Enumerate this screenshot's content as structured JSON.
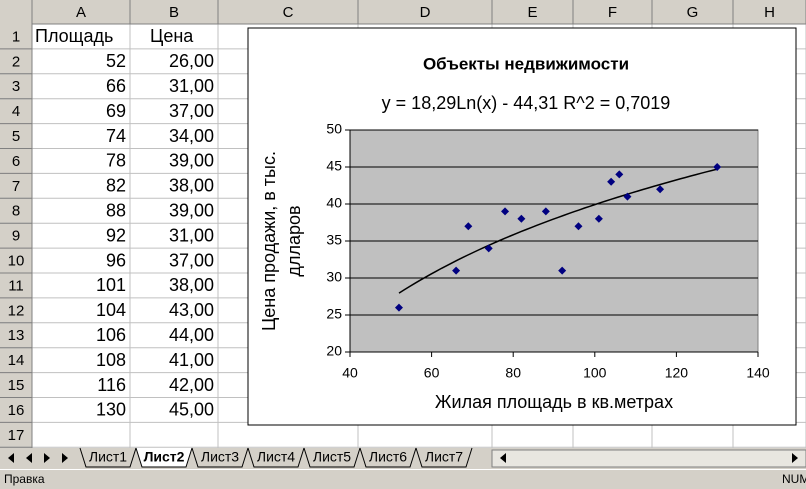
{
  "sheet": {
    "columns": [
      "A",
      "B",
      "C",
      "D",
      "E",
      "F",
      "G",
      "H"
    ],
    "rows": [
      "1",
      "2",
      "3",
      "4",
      "5",
      "6",
      "7",
      "8",
      "9",
      "10",
      "11",
      "12",
      "13",
      "14",
      "15",
      "16",
      "17"
    ],
    "cells": [
      [
        "Площадь",
        "Цена"
      ],
      [
        "52",
        "26,00"
      ],
      [
        "66",
        "31,00"
      ],
      [
        "69",
        "37,00"
      ],
      [
        "74",
        "34,00"
      ],
      [
        "78",
        "39,00"
      ],
      [
        "82",
        "38,00"
      ],
      [
        "88",
        "39,00"
      ],
      [
        "92",
        "31,00"
      ],
      [
        "96",
        "37,00"
      ],
      [
        "101",
        "38,00"
      ],
      [
        "104",
        "43,00"
      ],
      [
        "106",
        "44,00"
      ],
      [
        "108",
        "41,00"
      ],
      [
        "116",
        "42,00"
      ],
      [
        "130",
        "45,00"
      ]
    ],
    "tabs": [
      "Лист1",
      "Лист2",
      "Лист3",
      "Лист4",
      "Лист5",
      "Лист6",
      "Лист7"
    ],
    "active_tab": 1,
    "status": "Правка",
    "indicator": "NUM"
  },
  "chart_data": {
    "type": "scatter",
    "title": "Объекты недвижимости",
    "annotation": "y = 18,29Ln(x) - 44,31   R^2 = 0,7019",
    "xlabel": "Жилая площадь в кв.метрах",
    "ylabel": [
      "Цена продажи, в    тыс.",
      "длларов"
    ],
    "x": [
      52,
      66,
      69,
      74,
      78,
      82,
      88,
      92,
      96,
      101,
      104,
      106,
      108,
      116,
      130
    ],
    "values": [
      26,
      31,
      37,
      34,
      39,
      38,
      39,
      31,
      37,
      38,
      43,
      44,
      41,
      42,
      45
    ],
    "color": "#000080",
    "trendline": "log",
    "xlim": [
      40,
      140
    ],
    "xticks": [
      40,
      60,
      80,
      100,
      120,
      140
    ],
    "ylim": [
      20,
      50
    ],
    "yticks": [
      20,
      25,
      30,
      35,
      40,
      45,
      50
    ],
    "grid": true
  }
}
